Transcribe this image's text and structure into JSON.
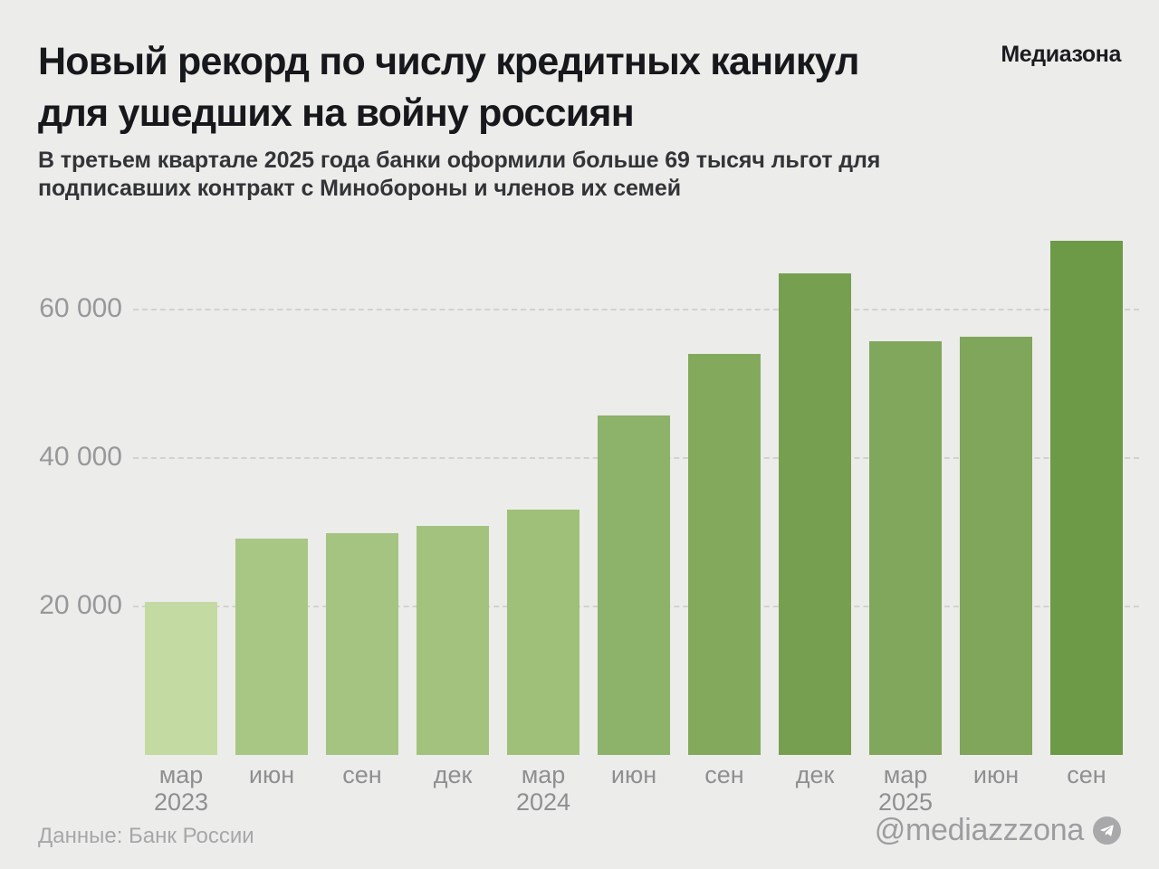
{
  "header": {
    "title_line1": "Новый рекорд по числу кредитных каникул",
    "title_line2": "для ушедших на войну россиян",
    "subtitle_line1": "В третьем квартале 2025 года банки оформили больше 69 тысяч льгот для",
    "subtitle_line2": "подписавших контракт с Минобороны и членов их семей"
  },
  "brand": {
    "logo": "Медиазона",
    "handle": "@mediazzzona",
    "telegram_icon": "telegram-plane-icon",
    "handle_color": "#9c9da0",
    "icon_circle_color": "#a9a9ab"
  },
  "footer": {
    "source": "Данные: Банк России"
  },
  "chart_data": {
    "type": "bar",
    "title": "Новый рекорд по числу кредитных каникул для ушедших на войну россиян",
    "subtitle": "В третьем квартале 2025 года банки оформили больше 69 тысяч льгот для подписавших контракт с Минобороны и членов их семей",
    "source": "Данные: Банк России",
    "xlabel": "",
    "ylabel": "",
    "ylim": [
      0,
      72000
    ],
    "grid": "horizontal-dashed",
    "legend": "none",
    "categories": [
      {
        "month": "мар",
        "year": "2023"
      },
      {
        "month": "июн",
        "year": ""
      },
      {
        "month": "сен",
        "year": ""
      },
      {
        "month": "дек",
        "year": ""
      },
      {
        "month": "мар",
        "year": "2024"
      },
      {
        "month": "июн",
        "year": ""
      },
      {
        "month": "сен",
        "year": ""
      },
      {
        "month": "дек",
        "year": ""
      },
      {
        "month": "мар",
        "year": "2025"
      },
      {
        "month": "июн",
        "year": ""
      },
      {
        "month": "сен",
        "year": ""
      }
    ],
    "values": [
      20600,
      29100,
      29900,
      30900,
      33000,
      45700,
      54000,
      64900,
      55700,
      56300,
      69300
    ],
    "bar_colors": [
      "#c3dba3",
      "#a8c684",
      "#a5c481",
      "#a2c27e",
      "#9ec078",
      "#8db269",
      "#83aa5c",
      "#76a04f",
      "#80a75b",
      "#7fa65a",
      "#6d9a47"
    ],
    "yticks": [
      {
        "value": 20000,
        "label": "20 000"
      },
      {
        "value": 40000,
        "label": "40 000"
      },
      {
        "value": 60000,
        "label": "60 000"
      }
    ],
    "background_color": "#ececea",
    "gridline_color": "#d2d2d0",
    "tick_label_color": "#97989a"
  }
}
